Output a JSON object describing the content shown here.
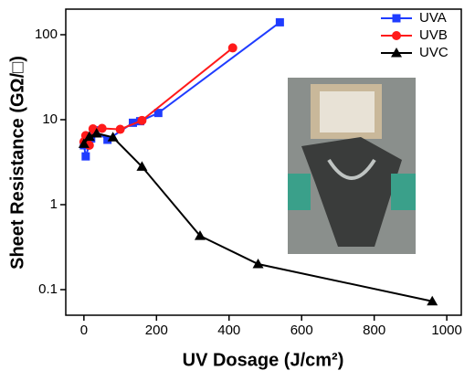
{
  "chart_data": {
    "type": "line",
    "xlabel": "UV Dosage (J/cm²)",
    "ylabel": "Sheet Resistance (GΩ/□)",
    "xlim": [
      -50,
      1040
    ],
    "xticks": [
      0,
      200,
      400,
      600,
      800,
      1000
    ],
    "ylim": [
      0.05,
      200
    ],
    "yticks": [
      0.1,
      1,
      10,
      100
    ],
    "log_y": true,
    "legend": "upper right",
    "series": [
      {
        "name": "UVA",
        "color": "#1f3cff",
        "marker": "square",
        "x": [
          0,
          5,
          20,
          30,
          65,
          135,
          155,
          205,
          540
        ],
        "values": [
          5,
          3.7,
          6,
          7.5,
          5.8,
          9.2,
          9.6,
          12,
          140
        ]
      },
      {
        "name": "UVB",
        "color": "#ff1a1a",
        "marker": "circle",
        "x": [
          0,
          5,
          15,
          25,
          50,
          100,
          160,
          410
        ],
        "values": [
          5.5,
          6.5,
          5,
          7.8,
          7.9,
          7.7,
          9.8,
          70
        ]
      },
      {
        "name": "UVC",
        "color": "#000000",
        "marker": "triangle",
        "x": [
          0,
          15,
          35,
          80,
          160,
          320,
          480,
          960
        ],
        "values": [
          5.2,
          6.3,
          6.9,
          6.2,
          2.8,
          0.43,
          0.2,
          0.073
        ]
      }
    ]
  }
}
